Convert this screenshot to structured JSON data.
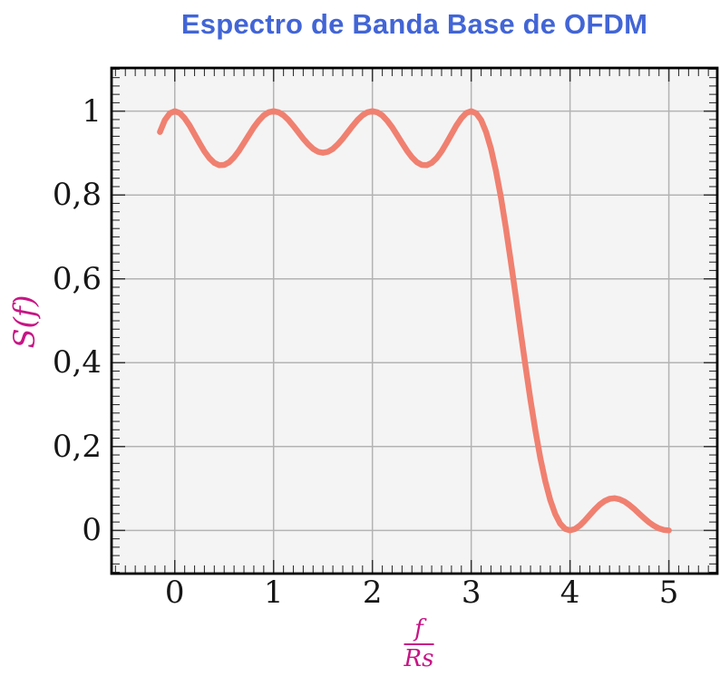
{
  "colors": {
    "title": "#4265d6",
    "axis_label": "#c71585",
    "curve": "#f08070",
    "grid": "#b3b3b3",
    "plot_bg": "#f4f4f4",
    "frame": "#000000",
    "tick": "#333333",
    "tick_label": "#161616"
  },
  "chart_data": {
    "type": "line",
    "title": "Espectro de Banda Base de OFDM",
    "xlabel": "f/Rs",
    "xlabel_numerator": "f",
    "xlabel_denominator": "Rs",
    "ylabel": "S(f)",
    "xlim": [
      -0.64,
      5.49
    ],
    "ylim": [
      -0.103,
      1.103
    ],
    "x_ticks": [
      0,
      1,
      2,
      3,
      4,
      5
    ],
    "x_tick_labels": [
      "0",
      "1",
      "2",
      "3",
      "4",
      "5"
    ],
    "y_ticks": [
      0,
      0.2,
      0.4,
      0.6,
      0.8,
      1
    ],
    "y_tick_labels": [
      "0",
      "0,2",
      "0,4",
      "0,6",
      "0,8",
      "1"
    ],
    "x_minor_step": 0.1,
    "y_minor_step": 0.02,
    "grid": "major",
    "legend": "none",
    "series": [
      {
        "name": "S(f)",
        "x_start": -0.15,
        "x_step": 0.05,
        "y": [
          0.9505,
          0.9787,
          0.9949,
          1,
          0.9955,
          0.9833,
          0.9657,
          0.9451,
          0.9239,
          0.9042,
          0.888,
          0.8767,
          0.8712,
          0.8718,
          0.8783,
          0.89,
          0.9057,
          0.924,
          0.9431,
          0.9614,
          0.9773,
          0.9897,
          0.9974,
          1,
          0.9974,
          0.9902,
          0.9789,
          0.965,
          0.9496,
          0.9344,
          0.9207,
          0.9099,
          0.903,
          0.9006,
          0.903,
          0.9099,
          0.9207,
          0.9344,
          0.9496,
          0.965,
          0.9789,
          0.9902,
          0.9974,
          1,
          0.9974,
          0.9897,
          0.9773,
          0.9614,
          0.9431,
          0.924,
          0.9057,
          0.89,
          0.8783,
          0.8718,
          0.8712,
          0.8767,
          0.888,
          0.9042,
          0.9239,
          0.9451,
          0.9657,
          0.9833,
          0.9955,
          1,
          0.9949,
          0.9787,
          0.9505,
          0.9101,
          0.8578,
          0.7947,
          0.7225,
          0.6434,
          0.5599,
          0.4748,
          0.3909,
          0.311,
          0.2374,
          0.1722,
          0.1169,
          0.0724,
          0.039,
          0.0164,
          0.0038,
          0,
          0.0033,
          0.0118,
          0.0236,
          0.0369,
          0.05,
          0.0615,
          0.0701,
          0.0753,
          0.0768,
          0.0745,
          0.069,
          0.0608,
          0.0508,
          0.0399,
          0.0291,
          0.0192,
          0.011,
          0.0049,
          0.0012,
          0
        ]
      }
    ]
  }
}
